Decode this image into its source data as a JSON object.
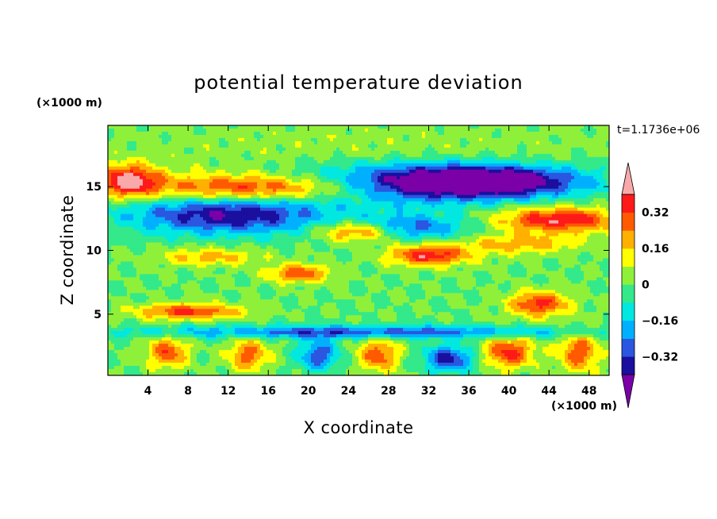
{
  "chart_data": {
    "type": "heatmap",
    "title": "potential temperature deviation",
    "xlabel": "X coordinate",
    "ylabel": "Z coordinate",
    "x_unit": "(×1000 m)",
    "y_unit": "(×1000 m)",
    "time_label": "t=1.1736e+06",
    "xlim": [
      0,
      50
    ],
    "ylim": [
      0.2,
      19.8
    ],
    "x_ticks": [
      4,
      8,
      12,
      16,
      20,
      24,
      28,
      32,
      36,
      40,
      44,
      48
    ],
    "y_ticks": [
      5,
      10,
      15
    ],
    "colorbar": {
      "levels": [
        -0.4,
        -0.32,
        -0.24,
        -0.16,
        -0.08,
        0,
        0.08,
        0.16,
        0.24,
        0.32,
        0.4
      ],
      "colors": [
        "#7b00a8",
        "#1a0f9e",
        "#2a56e0",
        "#00b0ff",
        "#00e8e0",
        "#33e98a",
        "#8ff03a",
        "#ffff00",
        "#ffb000",
        "#ff5a00",
        "#ff1a1a",
        "#f9a9a9"
      ],
      "tick_labels": [
        "0.32",
        "0.16",
        "0",
        "−0.16",
        "−0.32"
      ],
      "tick_values": [
        0.32,
        0.16,
        0,
        -0.16,
        -0.32
      ],
      "extend": "both"
    },
    "features": [
      {
        "x": 26,
        "z": 17.5,
        "value": 0.05,
        "sx": 30,
        "sz": 3.0
      },
      {
        "x": 30,
        "z": 15.2,
        "value": -0.45,
        "sx": 14,
        "sz": 1.5
      },
      {
        "x": 12,
        "z": 12.8,
        "value": -0.4,
        "sx": 10,
        "sz": 1.5
      },
      {
        "x": 16,
        "z": 14.9,
        "value": 0.45,
        "sx": 12,
        "sz": 1.1
      },
      {
        "x": 38,
        "z": 15.5,
        "value": -0.38,
        "sx": 9,
        "sz": 1.2
      },
      {
        "x": 45,
        "z": 12.4,
        "value": 0.4,
        "sx": 6,
        "sz": 1.0
      },
      {
        "x": 32,
        "z": 9.6,
        "value": 0.38,
        "sx": 4,
        "sz": 0.8
      },
      {
        "x": 19,
        "z": 8.2,
        "value": 0.3,
        "sx": 3,
        "sz": 0.7
      },
      {
        "x": 2,
        "z": 15.5,
        "value": 0.4,
        "sx": 3,
        "sz": 1.2
      },
      {
        "x": 25,
        "z": 11.5,
        "value": 0.35,
        "sx": 4,
        "sz": 0.8
      },
      {
        "x": 10,
        "z": 9.5,
        "value": 0.2,
        "sx": 5,
        "sz": 0.7
      },
      {
        "x": 41,
        "z": 10.5,
        "value": 0.2,
        "sx": 6,
        "sz": 0.8
      },
      {
        "x": 30,
        "z": 11.8,
        "value": -0.28,
        "sx": 6,
        "sz": 1.0
      },
      {
        "x": 8,
        "z": 5.2,
        "value": 0.35,
        "sx": 5,
        "sz": 0.6
      },
      {
        "x": 43,
        "z": 5.8,
        "value": 0.35,
        "sx": 3,
        "sz": 1.0
      },
      {
        "x": 25,
        "z": 3.6,
        "value": -0.3,
        "sx": 22,
        "sz": 0.5
      },
      {
        "x": 6,
        "z": 2.0,
        "value": 0.3,
        "sx": 2,
        "sz": 1.2
      },
      {
        "x": 14,
        "z": 1.8,
        "value": 0.28,
        "sx": 2,
        "sz": 1.3
      },
      {
        "x": 21,
        "z": 1.8,
        "value": -0.3,
        "sx": 2,
        "sz": 1.2
      },
      {
        "x": 27,
        "z": 1.8,
        "value": 0.3,
        "sx": 2,
        "sz": 1.3
      },
      {
        "x": 34,
        "z": 1.5,
        "value": -0.35,
        "sx": 2.5,
        "sz": 1.0
      },
      {
        "x": 40,
        "z": 2.0,
        "value": 0.35,
        "sx": 2.5,
        "sz": 1.2
      },
      {
        "x": 47,
        "z": 2.0,
        "value": 0.3,
        "sx": 2,
        "sz": 1.5
      }
    ]
  }
}
